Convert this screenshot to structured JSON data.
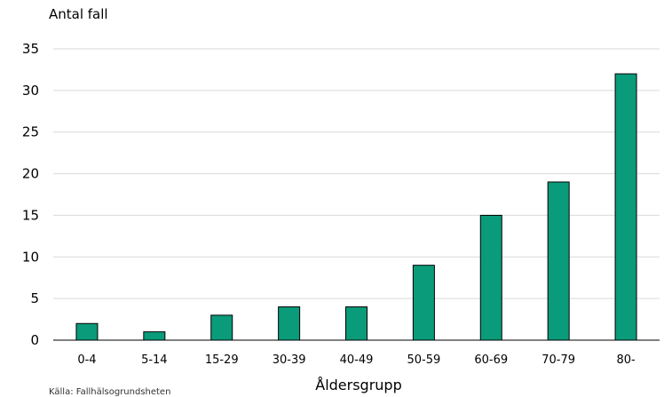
{
  "chart_data": {
    "type": "bar",
    "title_fragment": "",
    "ylabel": "Antal fall",
    "xlabel": "Åldersgrupp",
    "source": "Källa: Fallhälsogrundsheten",
    "categories": [
      "0-4",
      "5-14",
      "15-29",
      "30-39",
      "40-49",
      "50-59",
      "60-69",
      "70-79",
      "80-"
    ],
    "values": [
      2,
      1,
      3,
      4,
      4,
      9,
      15,
      19,
      32
    ],
    "ylim": [
      0,
      35
    ],
    "yticks": [
      0,
      5,
      10,
      15,
      20,
      25,
      30,
      35
    ],
    "grid": true,
    "legend": "none",
    "colors": {
      "bar": "#0a9b7a",
      "bar_stroke": "#000000",
      "grid": "#d9d9d9",
      "axis": "#000000"
    }
  }
}
